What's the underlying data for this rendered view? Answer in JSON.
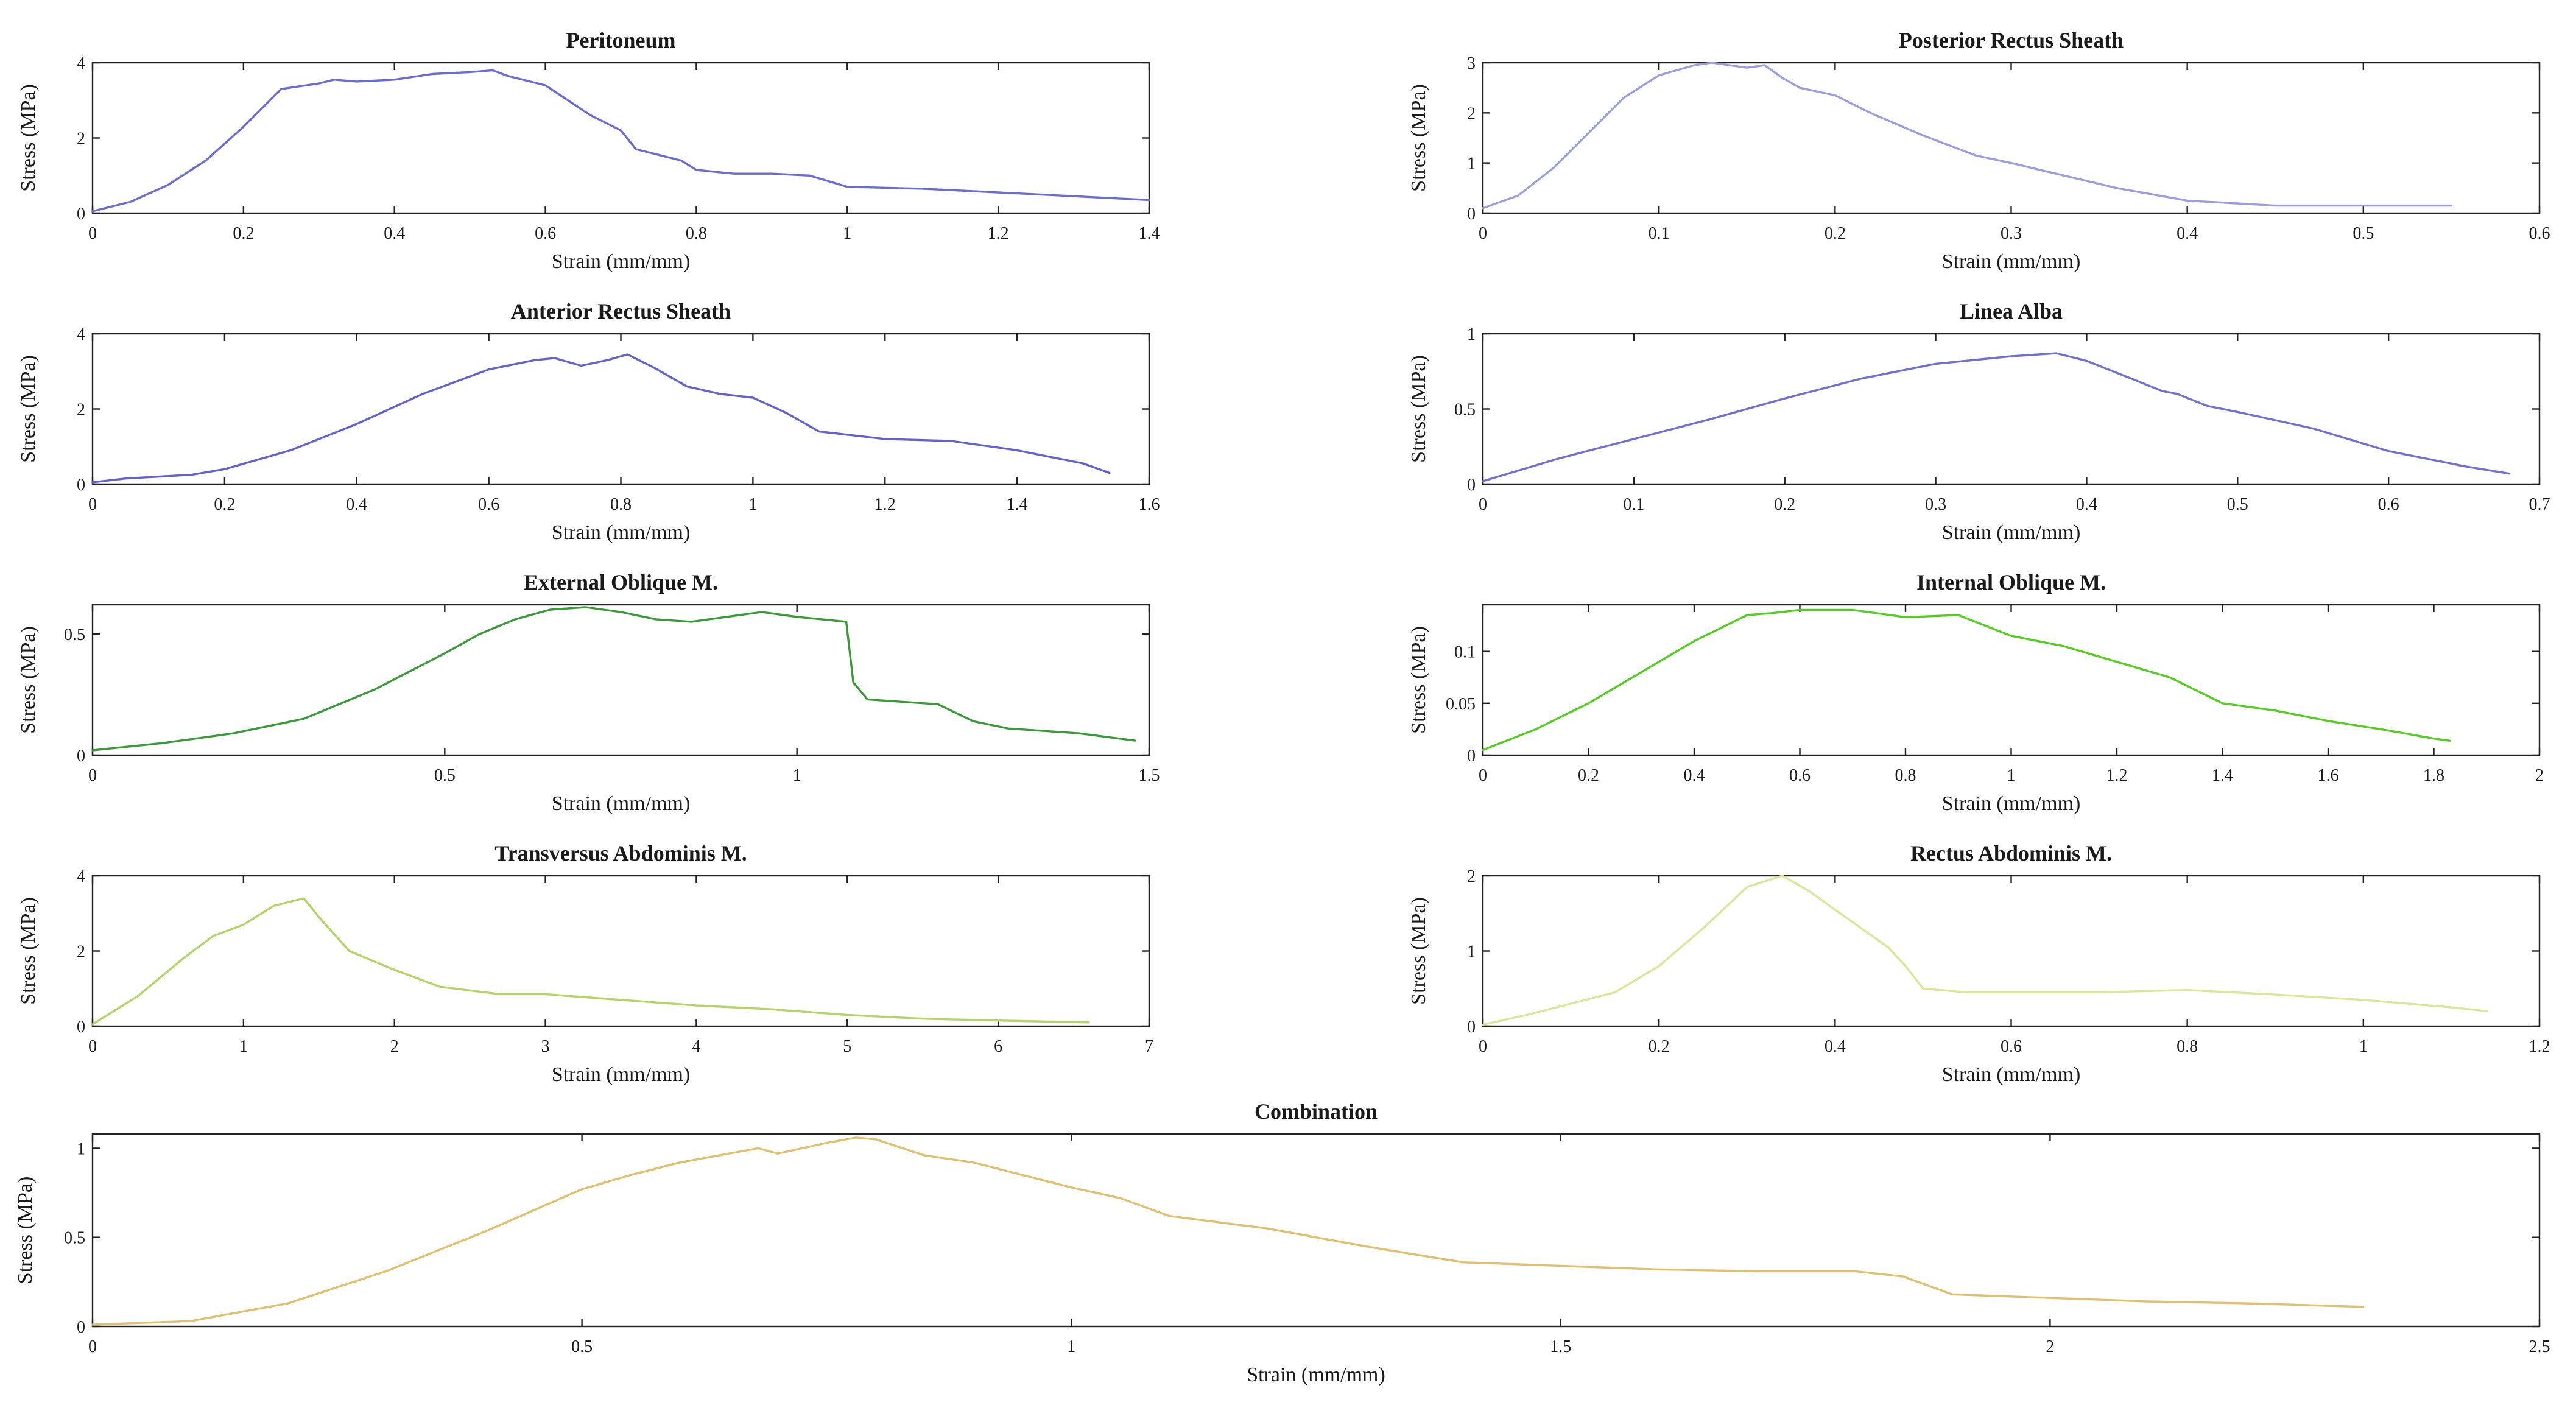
{
  "figure": {
    "chart_data": [
      {
        "id": "peritoneum",
        "type": "line",
        "title": "Peritoneum",
        "xlabel": "Strain (mm/mm)",
        "ylabel": "Stress (MPa)",
        "xlim": [
          0,
          1.4
        ],
        "ylim": [
          0,
          4
        ],
        "xticks": [
          "0",
          "0.2",
          "0.4",
          "0.6",
          "0.8",
          "1",
          "1.2",
          "1.4"
        ],
        "yticks": [
          "0",
          "2",
          "4"
        ],
        "color": "#6b6bd6",
        "series": [
          {
            "name": "Peritoneum",
            "x": [
              0,
              0.05,
              0.1,
              0.15,
              0.2,
              0.25,
              0.3,
              0.32,
              0.35,
              0.4,
              0.45,
              0.5,
              0.53,
              0.55,
              0.6,
              0.63,
              0.66,
              0.7,
              0.72,
              0.75,
              0.78,
              0.8,
              0.85,
              0.9,
              0.95,
              1.0,
              1.1,
              1.2,
              1.3,
              1.4
            ],
            "y": [
              0.05,
              0.3,
              0.75,
              1.4,
              2.3,
              3.3,
              3.45,
              3.55,
              3.5,
              3.55,
              3.7,
              3.75,
              3.8,
              3.65,
              3.4,
              3.0,
              2.6,
              2.2,
              1.7,
              1.55,
              1.4,
              1.15,
              1.05,
              1.05,
              1.0,
              0.7,
              0.65,
              0.55,
              0.45,
              0.35
            ]
          }
        ]
      },
      {
        "id": "posterior-rectus-sheath",
        "type": "line",
        "title": "Posterior Rectus Sheath",
        "xlabel": "Strain (mm/mm)",
        "ylabel": "Stress (MPa)",
        "xlim": [
          0,
          0.6
        ],
        "ylim": [
          0,
          3
        ],
        "xticks": [
          "0",
          "0.1",
          "0.2",
          "0.3",
          "0.4",
          "0.5",
          "0.6"
        ],
        "yticks": [
          "0",
          "1",
          "2",
          "3"
        ],
        "color": "#9c9ce0",
        "series": [
          {
            "name": "Posterior Rectus Sheath",
            "x": [
              0,
              0.02,
              0.04,
              0.06,
              0.08,
              0.1,
              0.12,
              0.13,
              0.15,
              0.16,
              0.17,
              0.18,
              0.2,
              0.22,
              0.25,
              0.28,
              0.3,
              0.33,
              0.36,
              0.4,
              0.45,
              0.5,
              0.55
            ],
            "y": [
              0.1,
              0.35,
              0.9,
              1.6,
              2.3,
              2.75,
              2.95,
              3.0,
              2.9,
              2.95,
              2.7,
              2.5,
              2.35,
              2.0,
              1.55,
              1.15,
              1.0,
              0.75,
              0.5,
              0.25,
              0.15,
              0.15,
              0.15
            ]
          }
        ]
      },
      {
        "id": "anterior-rectus-sheath",
        "type": "line",
        "title": "Anterior Rectus Sheath",
        "xlabel": "Strain (mm/mm)",
        "ylabel": "Stress (MPa)",
        "xlim": [
          0,
          1.6
        ],
        "ylim": [
          0,
          4
        ],
        "xticks": [
          "0",
          "0.2",
          "0.4",
          "0.6",
          "0.8",
          "1",
          "1.2",
          "1.4",
          "1.6"
        ],
        "yticks": [
          "0",
          "2",
          "4"
        ],
        "color": "#6262cc",
        "series": [
          {
            "name": "Anterior Rectus Sheath",
            "x": [
              0,
              0.05,
              0.15,
              0.2,
              0.3,
              0.4,
              0.5,
              0.6,
              0.67,
              0.7,
              0.74,
              0.78,
              0.81,
              0.85,
              0.9,
              0.95,
              1.0,
              1.05,
              1.1,
              1.2,
              1.3,
              1.4,
              1.5,
              1.54
            ],
            "y": [
              0.05,
              0.15,
              0.25,
              0.4,
              0.9,
              1.6,
              2.4,
              3.05,
              3.3,
              3.35,
              3.15,
              3.3,
              3.45,
              3.1,
              2.6,
              2.4,
              2.3,
              1.9,
              1.4,
              1.2,
              1.15,
              0.9,
              0.55,
              0.3
            ]
          }
        ]
      },
      {
        "id": "linea-alba",
        "type": "line",
        "title": "Linea Alba",
        "xlabel": "Strain (mm/mm)",
        "ylabel": "Stress (MPa)",
        "xlim": [
          0,
          0.7
        ],
        "ylim": [
          0,
          1
        ],
        "xticks": [
          "0",
          "0.1",
          "0.2",
          "0.3",
          "0.4",
          "0.5",
          "0.6",
          "0.7"
        ],
        "yticks": [
          "0",
          "0.5",
          "1"
        ],
        "color": "#7070d2",
        "series": [
          {
            "name": "Linea Alba",
            "x": [
              0,
              0.05,
              0.1,
              0.15,
              0.2,
              0.25,
              0.3,
              0.35,
              0.38,
              0.4,
              0.43,
              0.45,
              0.46,
              0.48,
              0.5,
              0.55,
              0.6,
              0.65,
              0.68
            ],
            "y": [
              0.02,
              0.17,
              0.3,
              0.43,
              0.57,
              0.7,
              0.8,
              0.85,
              0.87,
              0.82,
              0.7,
              0.62,
              0.6,
              0.52,
              0.48,
              0.37,
              0.22,
              0.12,
              0.07
            ]
          }
        ]
      },
      {
        "id": "external-oblique",
        "type": "line",
        "title": "External Oblique M.",
        "xlabel": "Strain (mm/mm)",
        "ylabel": "Stress (MPa)",
        "xlim": [
          0,
          1.5
        ],
        "ylim": [
          0,
          0.62
        ],
        "xticks": [
          "0",
          "0.5",
          "1",
          "1.5"
        ],
        "xtick_values": [
          0,
          0.5,
          1,
          1.5
        ],
        "yticks": [
          "0",
          "0.5"
        ],
        "ytick_values": [
          0,
          0.5
        ],
        "color": "#3a9a3a",
        "series": [
          {
            "name": "External Oblique M.",
            "x": [
              0,
              0.1,
              0.2,
              0.3,
              0.4,
              0.5,
              0.55,
              0.6,
              0.65,
              0.7,
              0.75,
              0.8,
              0.85,
              0.9,
              0.95,
              1.0,
              1.07,
              1.08,
              1.1,
              1.2,
              1.25,
              1.3,
              1.4,
              1.48
            ],
            "y": [
              0.02,
              0.05,
              0.09,
              0.15,
              0.27,
              0.42,
              0.5,
              0.56,
              0.6,
              0.61,
              0.59,
              0.56,
              0.55,
              0.57,
              0.59,
              0.57,
              0.55,
              0.3,
              0.23,
              0.21,
              0.14,
              0.11,
              0.09,
              0.06
            ]
          }
        ]
      },
      {
        "id": "internal-oblique",
        "type": "line",
        "title": "Internal Oblique M.",
        "xlabel": "Strain (mm/mm)",
        "ylabel": "Stress (MPa)",
        "xlim": [
          0,
          2
        ],
        "ylim": [
          0,
          0.145
        ],
        "xticks": [
          "0",
          "0.2",
          "0.4",
          "0.6",
          "0.8",
          "1",
          "1.2",
          "1.4",
          "1.6",
          "1.8",
          "2"
        ],
        "yticks": [
          "0",
          "0.05",
          "0.1"
        ],
        "ytick_values": [
          0,
          0.05,
          0.1
        ],
        "color": "#55cc22",
        "series": [
          {
            "name": "Internal Oblique M.",
            "x": [
              0,
              0.1,
              0.2,
              0.3,
              0.4,
              0.5,
              0.55,
              0.6,
              0.7,
              0.8,
              0.9,
              1.0,
              1.1,
              1.2,
              1.3,
              1.4,
              1.5,
              1.6,
              1.7,
              1.8,
              1.83
            ],
            "y": [
              0.005,
              0.025,
              0.05,
              0.08,
              0.11,
              0.135,
              0.137,
              0.14,
              0.14,
              0.133,
              0.135,
              0.115,
              0.105,
              0.09,
              0.075,
              0.05,
              0.043,
              0.033,
              0.025,
              0.016,
              0.014
            ]
          }
        ]
      },
      {
        "id": "transversus-abdominis",
        "type": "line",
        "title": "Transversus Abdominis M.",
        "xlabel": "Strain (mm/mm)",
        "ylabel": "Stress (MPa)",
        "xlim": [
          0,
          7
        ],
        "ylim": [
          0,
          4
        ],
        "xticks": [
          "0",
          "1",
          "2",
          "3",
          "4",
          "5",
          "6",
          "7"
        ],
        "yticks": [
          "0",
          "2",
          "4"
        ],
        "color": "#b4d46a",
        "series": [
          {
            "name": "Transversus Abdominis M.",
            "x": [
              0,
              0.3,
              0.6,
              0.8,
              1.0,
              1.2,
              1.4,
              1.5,
              1.7,
              2.0,
              2.3,
              2.7,
              3.0,
              3.5,
              4.0,
              4.5,
              5.0,
              5.5,
              6.0,
              6.6
            ],
            "y": [
              0.05,
              0.8,
              1.8,
              2.4,
              2.7,
              3.2,
              3.4,
              2.9,
              2.0,
              1.5,
              1.05,
              0.85,
              0.85,
              0.7,
              0.55,
              0.45,
              0.3,
              0.2,
              0.15,
              0.1
            ]
          }
        ]
      },
      {
        "id": "rectus-abdominis",
        "type": "line",
        "title": "Rectus Abdominis M.",
        "xlabel": "Strain (mm/mm)",
        "ylabel": "Stress (MPa)",
        "xlim": [
          0,
          1.2
        ],
        "ylim": [
          0,
          2
        ],
        "xticks": [
          "0",
          "0.2",
          "0.4",
          "0.6",
          "0.8",
          "1",
          "1.2"
        ],
        "yticks": [
          "0",
          "1",
          "2"
        ],
        "color": "#dce59a",
        "series": [
          {
            "name": "Rectus Abdominis M.",
            "x": [
              0,
              0.05,
              0.1,
              0.15,
              0.2,
              0.25,
              0.3,
              0.34,
              0.37,
              0.4,
              0.43,
              0.46,
              0.48,
              0.5,
              0.55,
              0.6,
              0.7,
              0.8,
              0.9,
              1.0,
              1.1,
              1.14
            ],
            "y": [
              0.02,
              0.15,
              0.3,
              0.45,
              0.8,
              1.3,
              1.85,
              2.0,
              1.8,
              1.55,
              1.3,
              1.05,
              0.8,
              0.5,
              0.45,
              0.45,
              0.45,
              0.48,
              0.42,
              0.35,
              0.25,
              0.2
            ]
          }
        ]
      },
      {
        "id": "combination",
        "type": "line",
        "title": "Combination",
        "xlabel": "Strain (mm/mm)",
        "ylabel": "Stress (MPa)",
        "xlim": [
          0,
          2.5
        ],
        "ylim": [
          0,
          1.08
        ],
        "xticks": [
          "0",
          "0.5",
          "1",
          "1.5",
          "2",
          "2.5"
        ],
        "xtick_values": [
          0,
          0.5,
          1,
          1.5,
          2,
          2.5
        ],
        "yticks": [
          "0",
          "0.5",
          "1"
        ],
        "ytick_values": [
          0,
          0.5,
          1
        ],
        "color": "#e0c070",
        "series": [
          {
            "name": "Combination",
            "x": [
              0,
              0.1,
              0.2,
              0.3,
              0.4,
              0.5,
              0.55,
              0.6,
              0.68,
              0.7,
              0.75,
              0.78,
              0.8,
              0.85,
              0.9,
              0.95,
              1.0,
              1.05,
              1.1,
              1.2,
              1.3,
              1.4,
              1.5,
              1.6,
              1.7,
              1.8,
              1.85,
              1.9,
              2.0,
              2.1,
              2.2,
              2.32
            ],
            "y": [
              0.01,
              0.03,
              0.13,
              0.31,
              0.53,
              0.77,
              0.85,
              0.92,
              1.0,
              0.97,
              1.03,
              1.06,
              1.05,
              0.96,
              0.92,
              0.85,
              0.78,
              0.72,
              0.62,
              0.55,
              0.45,
              0.36,
              0.34,
              0.32,
              0.31,
              0.31,
              0.28,
              0.18,
              0.16,
              0.14,
              0.13,
              0.11
            ]
          }
        ]
      }
    ]
  }
}
